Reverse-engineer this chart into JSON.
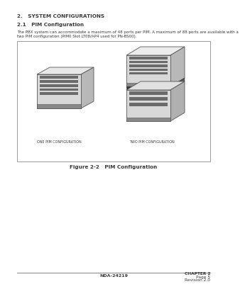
{
  "bg_color": "#ffffff",
  "text_color": "#3a3a3a",
  "section_title": "2.   SYSTEM CONFIGURATIONS",
  "subsection_title": "2.1   PIM Configuration",
  "body_line1": "The PBX system can accommodate a maximum of 48 ports per PIM. A maximum of 88 ports are available with a",
  "body_line2": "two PIM configuration (PIM0 Slot LT08/AP4 used for PN-BS00).",
  "figure_caption": "Figure 2-2   PIM Configuration",
  "label_one": "ONE PIM CONFIGURATION",
  "label_two": "TWO PIM CONFIGURATION",
  "footer_center": "NDA-24219",
  "footer_right1": "CHAPTER 2",
  "footer_right2": "Page 5",
  "footer_right3": "Revision 2.0"
}
